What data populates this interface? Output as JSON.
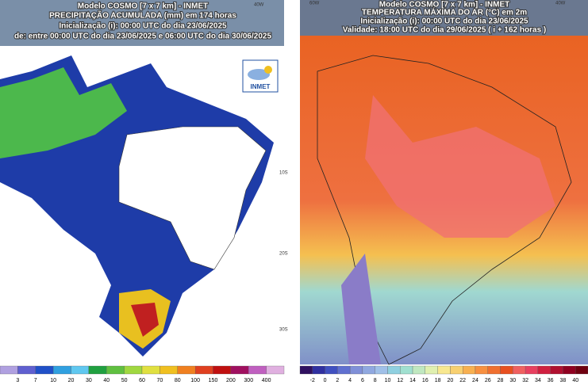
{
  "left_map": {
    "model": "Modelo COSMO [7 x 7 km] - INMET",
    "title": "PRECIPITAÇÃO ACUMULADA (mm) em 174 horas",
    "init": "Inicialização (i): 00:00 UTC do dia 23/06/2025",
    "validity": "de: entre 00:00 UTC do dia 23/06/2025 e 06:00 UTC do dia 30/06/2025",
    "logo": "INMET",
    "lat_labels": [
      "10S",
      "20S",
      "30S"
    ],
    "lon_label": "40W",
    "colorbar": [
      3,
      7,
      10,
      20,
      30,
      40,
      50,
      60,
      70,
      80,
      100,
      150,
      200,
      300,
      400
    ]
  },
  "right_map": {
    "model": "Modelo COSMO [7 x 7 km] - INMET",
    "title": "TEMPERATURA MÁXIMA DO AR (°C) em 2m",
    "init": "Inicialização (i): 00:00 UTC do dia 23/06/2025",
    "validity": "Validade: 18:00 UTC do dia 29/06/2025 ( i + 162 horas )",
    "lon_labels": [
      "60W",
      "40W"
    ],
    "colorbar": [
      -2,
      0,
      2,
      4,
      6,
      8,
      10,
      12,
      14,
      16,
      18,
      20,
      22,
      24,
      26,
      28,
      30,
      32,
      34,
      36,
      38,
      40
    ]
  }
}
